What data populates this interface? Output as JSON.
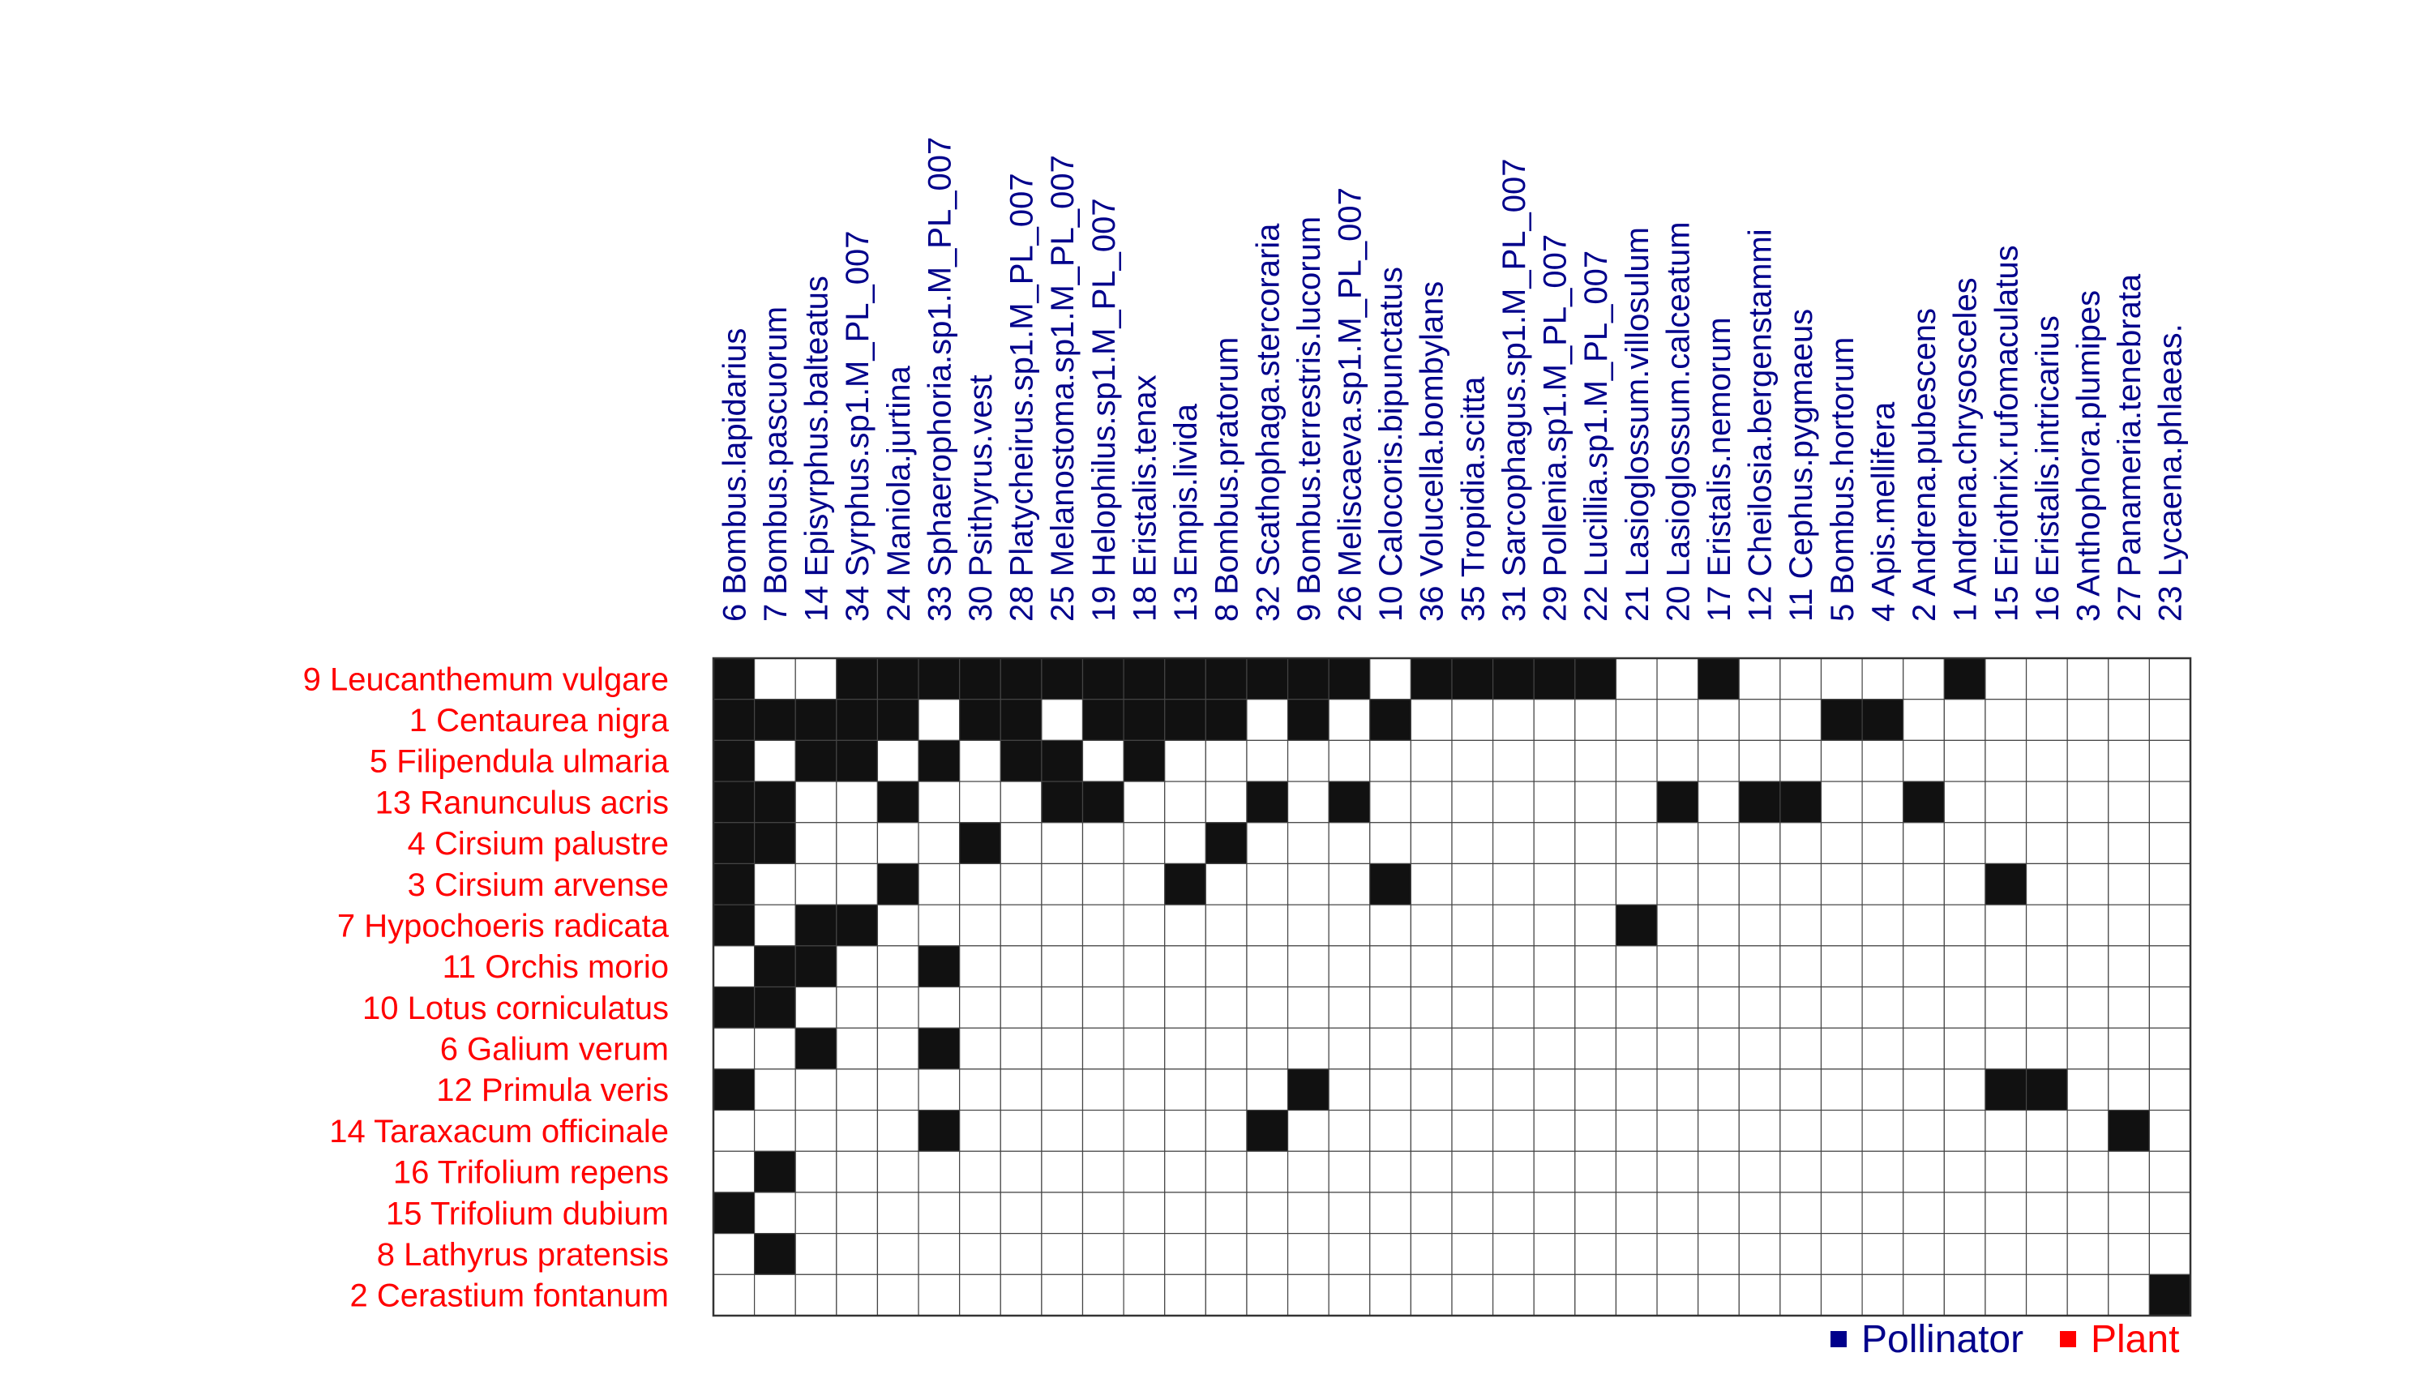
{
  "chart_data": {
    "type": "heatmap",
    "title": "",
    "xlabel": "",
    "ylabel": "",
    "colors": {
      "pollinator": "#00008b",
      "plant": "#ff0000",
      "filled": "#111111",
      "empty": "#ffffff",
      "grid": "#444444"
    },
    "legend": [
      {
        "label": "Pollinator",
        "color": "#00008b"
      },
      {
        "label": "Plant",
        "color": "#ff0000"
      }
    ],
    "legend_position": "bottom-right",
    "pollinators": [
      "6 Bombus.lapidarius",
      "7 Bombus.pascuorum",
      "14 Episyrphus.balteatus",
      "34 Syrphus.sp1.M_PL_007",
      "24 Maniola.jurtina",
      "33 Sphaerophoria.sp1.M_PL_007",
      "30 Psithyrus.vest",
      "28 Platycheirus.sp1.M_PL_007",
      "25 Melanostoma.sp1.M_PL_007",
      "19 Helophilus.sp1.M_PL_007",
      "18 Eristalis.tenax",
      "13 Empis.livida",
      "8 Bombus.pratorum",
      "32 Scathophaga.stercoraria",
      "9 Bombus.terrestris.lucorum",
      "26 Meliscaeva.sp1.M_PL_007",
      "10 Calocoris.bipunctatus",
      "36 Volucella.bombylans",
      "35 Tropidia.scitta",
      "31 Sarcophagus.sp1.M_PL_007",
      "29 Pollenia.sp1.M_PL_007",
      "22 Lucillia.sp1.M_PL_007",
      "21 Lasioglossum.villosulum",
      "20 Lasioglossum.calceatum",
      "17 Eristalis.nemorum",
      "12 Cheilosia.bergenstammi",
      "11 Cephus.pygmaeus",
      "5 Bombus.hortorum",
      "4 Apis.mellifera",
      "2 Andrena.pubescens",
      "1 Andrena.chrysosceles",
      "15 Eriothrix.rufomaculatus",
      "16 Eristalis.intricarius",
      "3 Anthophora.plumipes",
      "27 Panameria.tenebrata",
      "23 Lycaena.phlaeas."
    ],
    "plants": [
      "9 Leucanthemum vulgare",
      "1 Centaurea nigra",
      "5 Filipendula ulmaria",
      "13 Ranunculus acris",
      "4 Cirsium palustre",
      "3 Cirsium arvense",
      "7 Hypochoeris radicata",
      "11 Orchis morio",
      "10 Lotus corniculatus",
      "6 Galium verum",
      "12 Primula veris",
      "14 Taraxacum officinale",
      "16 Trifolium repens",
      "15 Trifolium dubium",
      "8 Lathyrus pratensis",
      "2 Cerastium fontanum"
    ],
    "matrix": [
      [
        1,
        0,
        0,
        1,
        1,
        1,
        1,
        1,
        1,
        1,
        1,
        1,
        1,
        1,
        1,
        1,
        0,
        1,
        1,
        1,
        1,
        1,
        0,
        0,
        1,
        0,
        0,
        0,
        0,
        0,
        1,
        0,
        0,
        0,
        0,
        0
      ],
      [
        1,
        1,
        1,
        1,
        1,
        0,
        1,
        1,
        0,
        1,
        1,
        1,
        1,
        0,
        1,
        0,
        1,
        0,
        0,
        0,
        0,
        0,
        0,
        0,
        0,
        0,
        0,
        1,
        1,
        0,
        0,
        0,
        0,
        0,
        0,
        0
      ],
      [
        1,
        0,
        1,
        1,
        0,
        1,
        0,
        1,
        1,
        0,
        1,
        0,
        0,
        0,
        0,
        0,
        0,
        0,
        0,
        0,
        0,
        0,
        0,
        0,
        0,
        0,
        0,
        0,
        0,
        0,
        0,
        0,
        0,
        0,
        0,
        0
      ],
      [
        1,
        1,
        0,
        0,
        1,
        0,
        0,
        0,
        1,
        1,
        0,
        0,
        0,
        1,
        0,
        1,
        0,
        0,
        0,
        0,
        0,
        0,
        0,
        1,
        0,
        1,
        1,
        0,
        0,
        1,
        0,
        0,
        0,
        0,
        0,
        0
      ],
      [
        1,
        1,
        0,
        0,
        0,
        0,
        1,
        0,
        0,
        0,
        0,
        0,
        1,
        0,
        0,
        0,
        0,
        0,
        0,
        0,
        0,
        0,
        0,
        0,
        0,
        0,
        0,
        0,
        0,
        0,
        0,
        0,
        0,
        0,
        0,
        0
      ],
      [
        1,
        0,
        0,
        0,
        1,
        0,
        0,
        0,
        0,
        0,
        0,
        1,
        0,
        0,
        0,
        0,
        1,
        0,
        0,
        0,
        0,
        0,
        0,
        0,
        0,
        0,
        0,
        0,
        0,
        0,
        0,
        1,
        0,
        0,
        0,
        0
      ],
      [
        1,
        0,
        1,
        1,
        0,
        0,
        0,
        0,
        0,
        0,
        0,
        0,
        0,
        0,
        0,
        0,
        0,
        0,
        0,
        0,
        0,
        0,
        1,
        0,
        0,
        0,
        0,
        0,
        0,
        0,
        0,
        0,
        0,
        0,
        0,
        0
      ],
      [
        0,
        1,
        1,
        0,
        0,
        1,
        0,
        0,
        0,
        0,
        0,
        0,
        0,
        0,
        0,
        0,
        0,
        0,
        0,
        0,
        0,
        0,
        0,
        0,
        0,
        0,
        0,
        0,
        0,
        0,
        0,
        0,
        0,
        0,
        0,
        0
      ],
      [
        1,
        1,
        0,
        0,
        0,
        0,
        0,
        0,
        0,
        0,
        0,
        0,
        0,
        0,
        0,
        0,
        0,
        0,
        0,
        0,
        0,
        0,
        0,
        0,
        0,
        0,
        0,
        0,
        0,
        0,
        0,
        0,
        0,
        0,
        0,
        0
      ],
      [
        0,
        0,
        1,
        0,
        0,
        1,
        0,
        0,
        0,
        0,
        0,
        0,
        0,
        0,
        0,
        0,
        0,
        0,
        0,
        0,
        0,
        0,
        0,
        0,
        0,
        0,
        0,
        0,
        0,
        0,
        0,
        0,
        0,
        0,
        0,
        0
      ],
      [
        1,
        0,
        0,
        0,
        0,
        0,
        0,
        0,
        0,
        0,
        0,
        0,
        0,
        0,
        1,
        0,
        0,
        0,
        0,
        0,
        0,
        0,
        0,
        0,
        0,
        0,
        0,
        0,
        0,
        0,
        0,
        1,
        1,
        0,
        0,
        0
      ],
      [
        0,
        0,
        0,
        0,
        0,
        1,
        0,
        0,
        0,
        0,
        0,
        0,
        0,
        1,
        0,
        0,
        0,
        0,
        0,
        0,
        0,
        0,
        0,
        0,
        0,
        0,
        0,
        0,
        0,
        0,
        0,
        0,
        0,
        0,
        1,
        0
      ],
      [
        0,
        1,
        0,
        0,
        0,
        0,
        0,
        0,
        0,
        0,
        0,
        0,
        0,
        0,
        0,
        0,
        0,
        0,
        0,
        0,
        0,
        0,
        0,
        0,
        0,
        0,
        0,
        0,
        0,
        0,
        0,
        0,
        0,
        0,
        0,
        0
      ],
      [
        1,
        0,
        0,
        0,
        0,
        0,
        0,
        0,
        0,
        0,
        0,
        0,
        0,
        0,
        0,
        0,
        0,
        0,
        0,
        0,
        0,
        0,
        0,
        0,
        0,
        0,
        0,
        0,
        0,
        0,
        0,
        0,
        0,
        0,
        0,
        0
      ],
      [
        0,
        1,
        0,
        0,
        0,
        0,
        0,
        0,
        0,
        0,
        0,
        0,
        0,
        0,
        0,
        0,
        0,
        0,
        0,
        0,
        0,
        0,
        0,
        0,
        0,
        0,
        0,
        0,
        0,
        0,
        0,
        0,
        0,
        0,
        0,
        0
      ],
      [
        0,
        0,
        0,
        0,
        0,
        0,
        0,
        0,
        0,
        0,
        0,
        0,
        0,
        0,
        0,
        0,
        0,
        0,
        0,
        0,
        0,
        0,
        0,
        0,
        0,
        0,
        0,
        0,
        0,
        0,
        0,
        0,
        0,
        0,
        0,
        1
      ]
    ]
  }
}
